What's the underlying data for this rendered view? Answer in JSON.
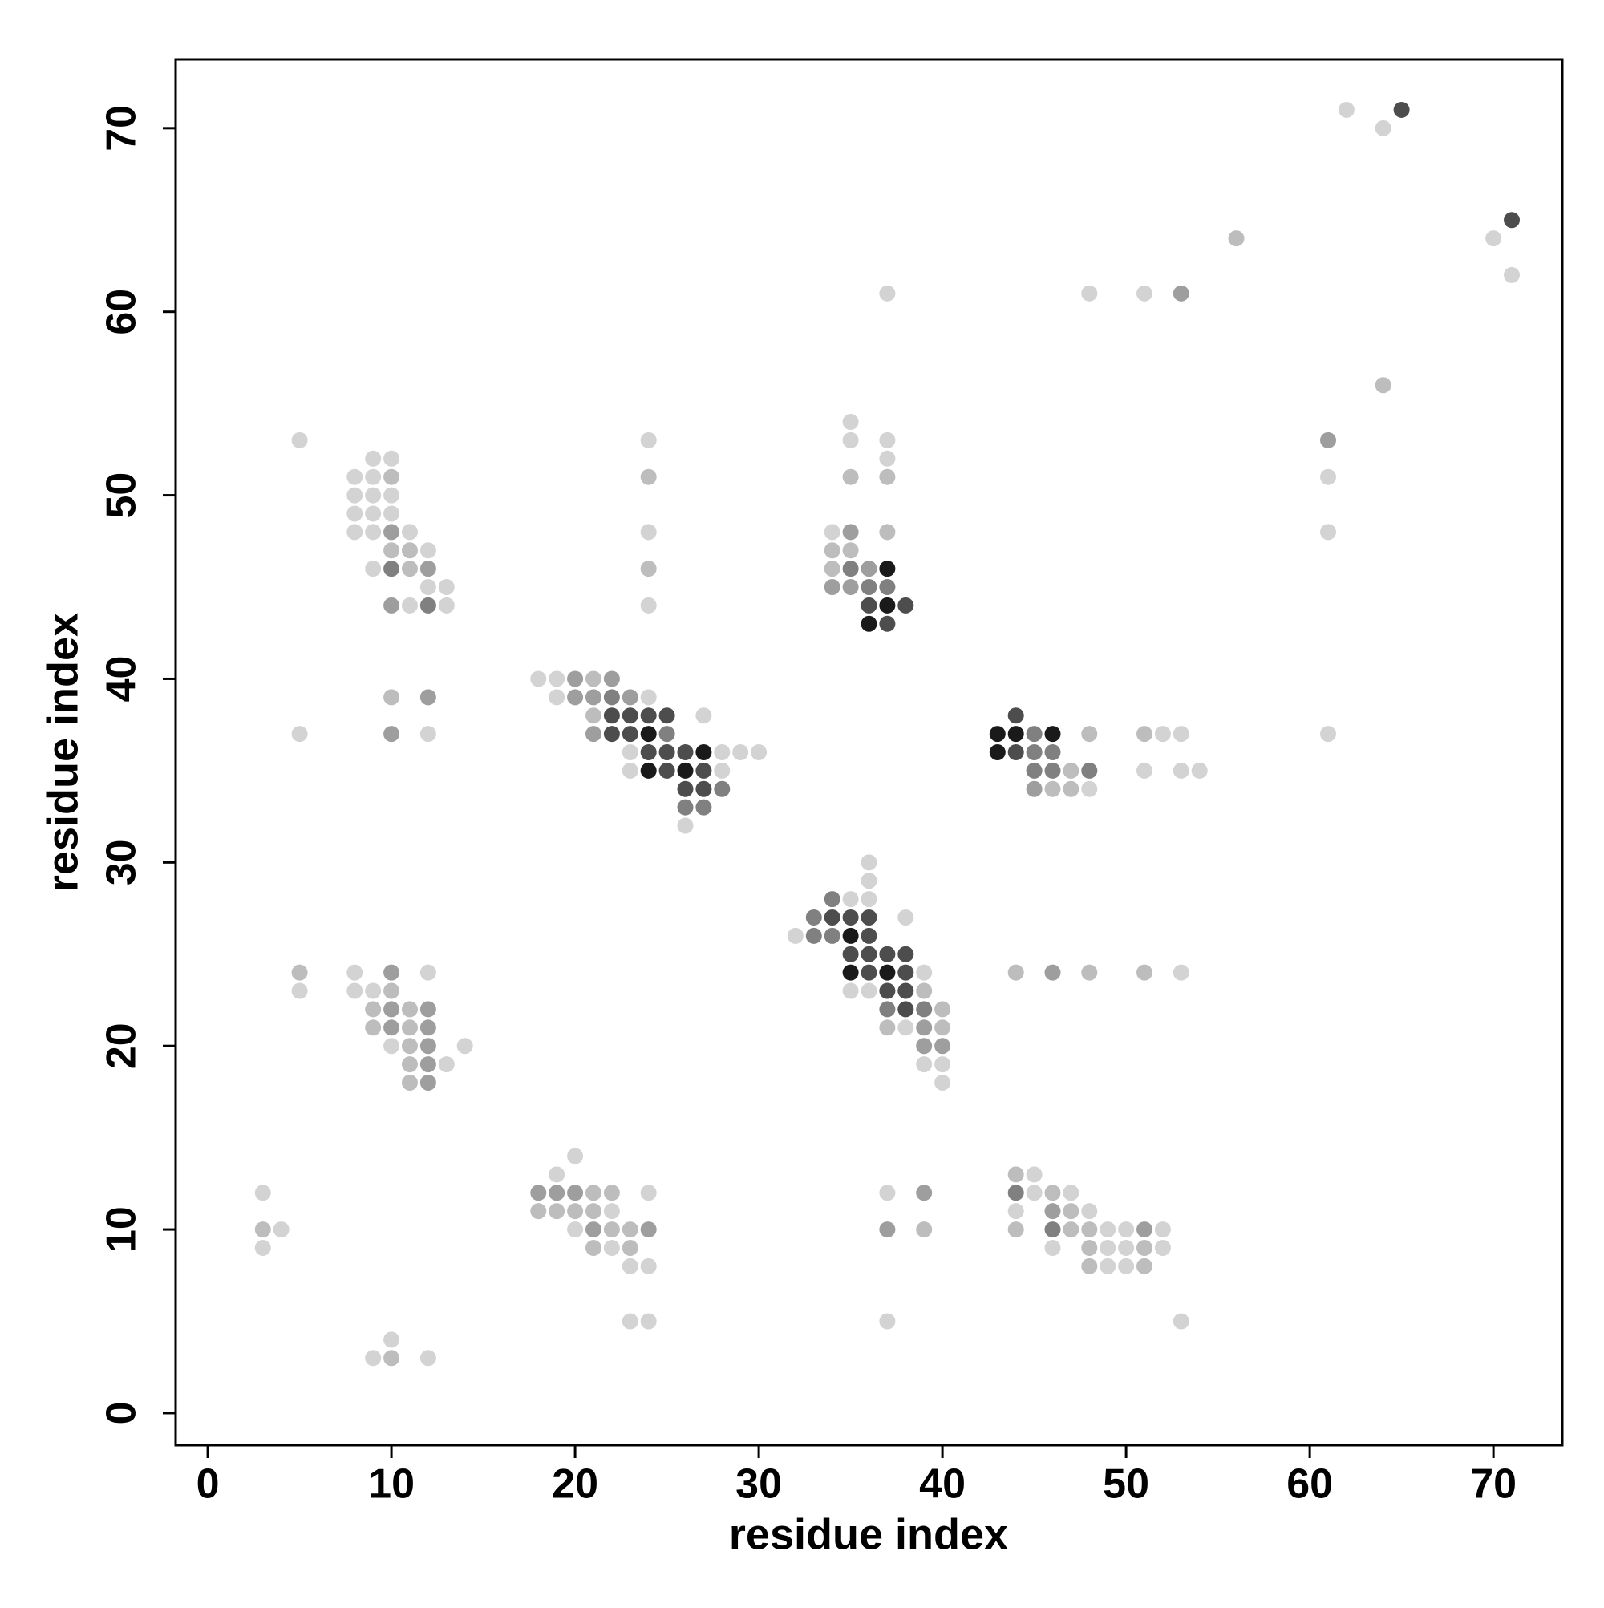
{
  "chart_data": {
    "type": "scatter",
    "x_label": "residue index",
    "y_label": "residue index",
    "xlim": [
      -1.75,
      73.75
    ],
    "ylim": [
      -1.75,
      73.75
    ],
    "xticks": [
      0,
      10,
      20,
      30,
      40,
      50,
      60,
      70
    ],
    "yticks": [
      0,
      10,
      20,
      30,
      40,
      50,
      60,
      70
    ],
    "series": [
      {
        "x": [
          62,
          64,
          65,
          71,
          70,
          71,
          56,
          37,
          48,
          51,
          53,
          64,
          61,
          61,
          61,
          61,
          5,
          9,
          10,
          8,
          9,
          10,
          8,
          9,
          10,
          8,
          9,
          10,
          8,
          9,
          10,
          11,
          10,
          11,
          12,
          9,
          10,
          11,
          12,
          12,
          13,
          10,
          11,
          12,
          13,
          10,
          12,
          5,
          10,
          12,
          24,
          24,
          24,
          24,
          24,
          35,
          35,
          37,
          37,
          35,
          37,
          34,
          35,
          37,
          34,
          35,
          34,
          35,
          36,
          37,
          34,
          35,
          36,
          37,
          36,
          37,
          38,
          36,
          37,
          18,
          19,
          20,
          21,
          22,
          19,
          20,
          21,
          22,
          23,
          24,
          21,
          22,
          23,
          24,
          25,
          27,
          21,
          22,
          23,
          24,
          25,
          23,
          24,
          25,
          26,
          27,
          28,
          29,
          30,
          23,
          24,
          25,
          26,
          27,
          28,
          26,
          27,
          28,
          26,
          27,
          26,
          44,
          43,
          44,
          45,
          46,
          48,
          51,
          52,
          53,
          43,
          44,
          45,
          46,
          45,
          46,
          47,
          48,
          51,
          53,
          54,
          45,
          46,
          47,
          48,
          36,
          36,
          34,
          35,
          36,
          33,
          34,
          35,
          36,
          38,
          32,
          33,
          34,
          35,
          36,
          35,
          36,
          37,
          38,
          35,
          36,
          37,
          38,
          39,
          35,
          36,
          37,
          38,
          39,
          37,
          38,
          39,
          40,
          37,
          38,
          39,
          40,
          39,
          40,
          39,
          40,
          40,
          44,
          46,
          48,
          51,
          53,
          5,
          5,
          8,
          10,
          12,
          8,
          9,
          10,
          9,
          10,
          11,
          12,
          9,
          10,
          11,
          12,
          10,
          11,
          12,
          14,
          11,
          12,
          13,
          11,
          12,
          3,
          3,
          4,
          3,
          10,
          9,
          10,
          12,
          20,
          19,
          18,
          19,
          20,
          21,
          22,
          24,
          18,
          19,
          20,
          21,
          22,
          20,
          21,
          22,
          23,
          24,
          21,
          22,
          23,
          23,
          24,
          23,
          24,
          37,
          39,
          37,
          39,
          37,
          44,
          45,
          44,
          45,
          46,
          47,
          44,
          46,
          47,
          48,
          44,
          46,
          47,
          48,
          49,
          50,
          51,
          52,
          46,
          48,
          49,
          50,
          51,
          52,
          48,
          49,
          50,
          51,
          53
        ],
        "y": [
          71,
          70,
          71,
          65,
          64,
          62,
          64,
          61,
          61,
          61,
          61,
          56,
          53,
          51,
          48,
          37,
          53,
          52,
          52,
          51,
          51,
          51,
          50,
          50,
          50,
          49,
          49,
          49,
          48,
          48,
          48,
          48,
          47,
          47,
          47,
          46,
          46,
          46,
          46,
          45,
          45,
          44,
          44,
          44,
          44,
          39,
          39,
          37,
          37,
          37,
          53,
          51,
          48,
          46,
          44,
          54,
          53,
          53,
          52,
          51,
          51,
          48,
          48,
          48,
          47,
          47,
          46,
          46,
          46,
          46,
          45,
          45,
          45,
          45,
          44,
          44,
          44,
          43,
          43,
          40,
          40,
          40,
          40,
          40,
          39,
          39,
          39,
          39,
          39,
          39,
          38,
          38,
          38,
          38,
          38,
          38,
          37,
          37,
          37,
          37,
          37,
          36,
          36,
          36,
          36,
          36,
          36,
          36,
          36,
          35,
          35,
          35,
          35,
          35,
          35,
          34,
          34,
          34,
          33,
          33,
          32,
          38,
          37,
          37,
          37,
          37,
          37,
          37,
          37,
          37,
          36,
          36,
          36,
          36,
          35,
          35,
          35,
          35,
          35,
          35,
          35,
          34,
          34,
          34,
          34,
          30,
          29,
          28,
          28,
          28,
          27,
          27,
          27,
          27,
          27,
          26,
          26,
          26,
          26,
          26,
          25,
          25,
          25,
          25,
          24,
          24,
          24,
          24,
          24,
          23,
          23,
          23,
          23,
          23,
          22,
          22,
          22,
          22,
          21,
          21,
          21,
          21,
          20,
          20,
          19,
          19,
          18,
          24,
          24,
          24,
          24,
          24,
          24,
          23,
          24,
          24,
          24,
          23,
          23,
          23,
          22,
          22,
          22,
          22,
          21,
          21,
          21,
          21,
          20,
          20,
          20,
          20,
          19,
          19,
          19,
          18,
          18,
          12,
          10,
          10,
          9,
          4,
          3,
          3,
          3,
          14,
          13,
          12,
          12,
          12,
          12,
          12,
          12,
          11,
          11,
          11,
          11,
          11,
          10,
          10,
          10,
          10,
          10,
          9,
          9,
          9,
          8,
          8,
          5,
          5,
          12,
          12,
          10,
          10,
          5,
          13,
          13,
          12,
          12,
          12,
          12,
          11,
          11,
          11,
          11,
          10,
          10,
          10,
          10,
          10,
          10,
          10,
          10,
          9,
          9,
          9,
          9,
          9,
          9,
          8,
          8,
          8,
          8,
          5
        ],
        "colors": [
          "#d3d3d3",
          "#d3d3d3",
          "#4d4d4d",
          "#4d4d4d",
          "#d3d3d3",
          "#d3d3d3",
          "#bdbdbd",
          "#d3d3d3",
          "#d3d3d3",
          "#d3d3d3",
          "#9e9e9e",
          "#bdbdbd",
          "#9e9e9e",
          "#d3d3d3",
          "#d3d3d3",
          "#d3d3d3",
          "#d3d3d3",
          "#d3d3d3",
          "#d3d3d3",
          "#d3d3d3",
          "#d3d3d3",
          "#bdbdbd",
          "#d3d3d3",
          "#d3d3d3",
          "#d3d3d3",
          "#d3d3d3",
          "#d3d3d3",
          "#d3d3d3",
          "#d3d3d3",
          "#d3d3d3",
          "#9e9e9e",
          "#d3d3d3",
          "#bdbdbd",
          "#bdbdbd",
          "#d3d3d3",
          "#d3d3d3",
          "#808080",
          "#bdbdbd",
          "#9e9e9e",
          "#d3d3d3",
          "#d3d3d3",
          "#9e9e9e",
          "#d3d3d3",
          "#808080",
          "#d3d3d3",
          "#bdbdbd",
          "#9e9e9e",
          "#d3d3d3",
          "#9e9e9e",
          "#d3d3d3",
          "#d3d3d3",
          "#bdbdbd",
          "#d3d3d3",
          "#bdbdbd",
          "#d3d3d3",
          "#d3d3d3",
          "#d3d3d3",
          "#d3d3d3",
          "#d3d3d3",
          "#bdbdbd",
          "#bdbdbd",
          "#d3d3d3",
          "#9e9e9e",
          "#bdbdbd",
          "#bdbdbd",
          "#bdbdbd",
          "#bdbdbd",
          "#808080",
          "#9e9e9e",
          "#1a1a1a",
          "#9e9e9e",
          "#9e9e9e",
          "#808080",
          "#808080",
          "#4d4d4d",
          "#1a1a1a",
          "#4d4d4d",
          "#1a1a1a",
          "#4d4d4d",
          "#d3d3d3",
          "#d3d3d3",
          "#9e9e9e",
          "#bdbdbd",
          "#9e9e9e",
          "#d3d3d3",
          "#9e9e9e",
          "#9e9e9e",
          "#808080",
          "#9e9e9e",
          "#d3d3d3",
          "#bdbdbd",
          "#4d4d4d",
          "#4d4d4d",
          "#4d4d4d",
          "#4d4d4d",
          "#d3d3d3",
          "#9e9e9e",
          "#4d4d4d",
          "#4d4d4d",
          "#1a1a1a",
          "#808080",
          "#d3d3d3",
          "#4d4d4d",
          "#4d4d4d",
          "#4d4d4d",
          "#1a1a1a",
          "#d3d3d3",
          "#d3d3d3",
          "#d3d3d3",
          "#d3d3d3",
          "#1a1a1a",
          "#4d4d4d",
          "#1a1a1a",
          "#4d4d4d",
          "#d3d3d3",
          "#4d4d4d",
          "#4d4d4d",
          "#808080",
          "#808080",
          "#808080",
          "#d3d3d3",
          "#4d4d4d",
          "#1a1a1a",
          "#1a1a1a",
          "#808080",
          "#1a1a1a",
          "#bdbdbd",
          "#bdbdbd",
          "#d3d3d3",
          "#d3d3d3",
          "#1a1a1a",
          "#4d4d4d",
          "#808080",
          "#808080",
          "#808080",
          "#808080",
          "#bdbdbd",
          "#808080",
          "#d3d3d3",
          "#d3d3d3",
          "#d3d3d3",
          "#9e9e9e",
          "#bdbdbd",
          "#bdbdbd",
          "#d3d3d3",
          "#d3d3d3",
          "#d3d3d3",
          "#808080",
          "#d3d3d3",
          "#d3d3d3",
          "#808080",
          "#4d4d4d",
          "#4d4d4d",
          "#4d4d4d",
          "#d3d3d3",
          "#d3d3d3",
          "#808080",
          "#808080",
          "#1a1a1a",
          "#4d4d4d",
          "#4d4d4d",
          "#4d4d4d",
          "#4d4d4d",
          "#4d4d4d",
          "#1a1a1a",
          "#4d4d4d",
          "#1a1a1a",
          "#4d4d4d",
          "#d3d3d3",
          "#d3d3d3",
          "#d3d3d3",
          "#4d4d4d",
          "#4d4d4d",
          "#bdbdbd",
          "#808080",
          "#4d4d4d",
          "#808080",
          "#bdbdbd",
          "#bdbdbd",
          "#d3d3d3",
          "#9e9e9e",
          "#bdbdbd",
          "#9e9e9e",
          "#9e9e9e",
          "#d3d3d3",
          "#d3d3d3",
          "#d3d3d3",
          "#bdbdbd",
          "#9e9e9e",
          "#bdbdbd",
          "#bdbdbd",
          "#d3d3d3",
          "#bdbdbd",
          "#d3d3d3",
          "#d3d3d3",
          "#9e9e9e",
          "#d3d3d3",
          "#d3d3d3",
          "#d3d3d3",
          "#bdbdbd",
          "#bdbdbd",
          "#9e9e9e",
          "#bdbdbd",
          "#9e9e9e",
          "#bdbdbd",
          "#9e9e9e",
          "#bdbdbd",
          "#9e9e9e",
          "#d3d3d3",
          "#bdbdbd",
          "#9e9e9e",
          "#d3d3d3",
          "#bdbdbd",
          "#9e9e9e",
          "#d3d3d3",
          "#bdbdbd",
          "#9e9e9e",
          "#d3d3d3",
          "#bdbdbd",
          "#d3d3d3",
          "#d3d3d3",
          "#d3d3d3",
          "#d3d3d3",
          "#bdbdbd",
          "#d3d3d3",
          "#d3d3d3",
          "#d3d3d3",
          "#9e9e9e",
          "#9e9e9e",
          "#9e9e9e",
          "#bdbdbd",
          "#bdbdbd",
          "#d3d3d3",
          "#bdbdbd",
          "#bdbdbd",
          "#bdbdbd",
          "#bdbdbd",
          "#d3d3d3",
          "#d3d3d3",
          "#9e9e9e",
          "#bdbdbd",
          "#bdbdbd",
          "#9e9e9e",
          "#bdbdbd",
          "#d3d3d3",
          "#bdbdbd",
          "#d3d3d3",
          "#d3d3d3",
          "#d3d3d3",
          "#d3d3d3",
          "#d3d3d3",
          "#9e9e9e",
          "#9e9e9e",
          "#bdbdbd",
          "#d3d3d3",
          "#bdbdbd",
          "#d3d3d3",
          "#808080",
          "#d3d3d3",
          "#bdbdbd",
          "#d3d3d3",
          "#d3d3d3",
          "#9e9e9e",
          "#bdbdbd",
          "#d3d3d3",
          "#bdbdbd",
          "#808080",
          "#bdbdbd",
          "#bdbdbd",
          "#d3d3d3",
          "#d3d3d3",
          "#9e9e9e",
          "#d3d3d3",
          "#d3d3d3",
          "#bdbdbd",
          "#d3d3d3",
          "#d3d3d3",
          "#bdbdbd",
          "#d3d3d3",
          "#bdbdbd",
          "#d3d3d3",
          "#d3d3d3",
          "#bdbdbd",
          "#d3d3d3"
        ]
      }
    ]
  }
}
